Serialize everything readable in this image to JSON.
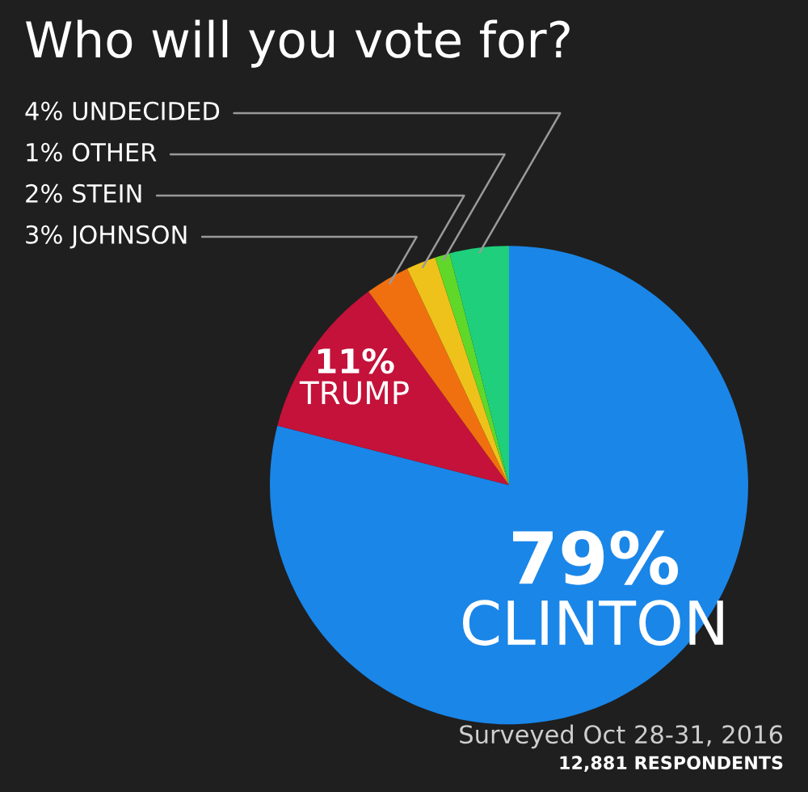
{
  "chart_data": {
    "type": "pie",
    "title": "Who will you vote for?",
    "categories": [
      "CLINTON",
      "TRUMP",
      "JOHNSON",
      "STEIN",
      "OTHER",
      "UNDECIDED"
    ],
    "values": [
      79,
      11,
      3,
      2,
      1,
      4
    ],
    "value_labels": [
      "79%",
      "11%",
      "3%",
      "2%",
      "1%",
      "4%"
    ],
    "colors": [
      "#1a86e8",
      "#c4123a",
      "#f07010",
      "#eec21a",
      "#5fd82a",
      "#1fcf7c"
    ],
    "annotations": [
      "Surveyed Oct 28-31, 2016",
      "12,881 RESPONDENTS"
    ],
    "legend": false
  }
}
